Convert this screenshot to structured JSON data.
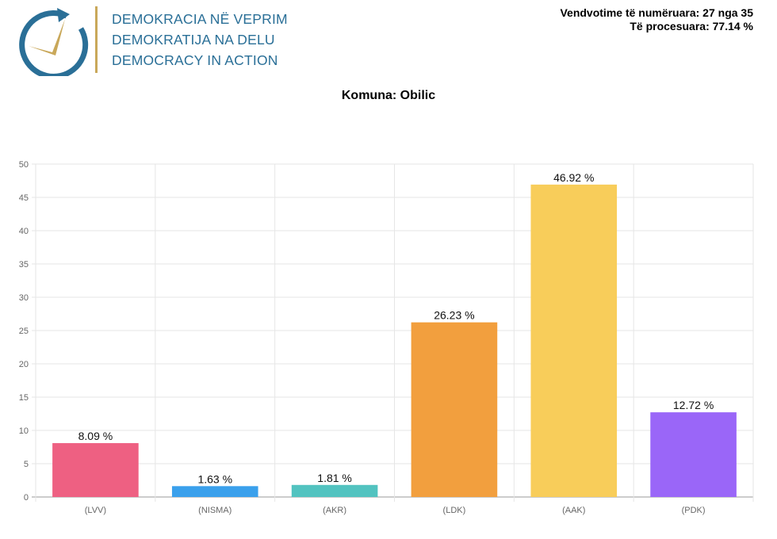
{
  "header": {
    "logo_lines": [
      "DEMOKRACIA NË VEPRIM",
      "DEMOKRATIJA NA DELU",
      "DEMOCRACY IN ACTION"
    ],
    "stations_counted": "Vendvotime të numëruara: 27 nga 35",
    "processed": "Të procesuara: 77.14 %"
  },
  "title": "Komuna: Obilic",
  "colors": {
    "logo_blue": "#2a6f97",
    "logo_gold": "#c9a85a"
  },
  "chart_data": {
    "type": "bar",
    "title": "Komuna: Obilic",
    "categories": [
      "(LVV)",
      "(NISMA)",
      "(AKR)",
      "(LDK)",
      "(AAK)",
      "(PDK)"
    ],
    "values": [
      8.09,
      1.63,
      1.81,
      26.23,
      46.92,
      12.72
    ],
    "data_labels": [
      "8.09 %",
      "1.63 %",
      "1.81 %",
      "26.23 %",
      "46.92 %",
      "12.72 %"
    ],
    "colors": [
      "#ee6082",
      "#3aa0ec",
      "#52c3c0",
      "#f29f3e",
      "#f8cd5a",
      "#9a66f8"
    ],
    "ylim": [
      0,
      50
    ],
    "yticks": [
      0,
      5,
      10,
      15,
      20,
      25,
      30,
      35,
      40,
      45,
      50
    ],
    "grid": true,
    "legend": "none"
  }
}
